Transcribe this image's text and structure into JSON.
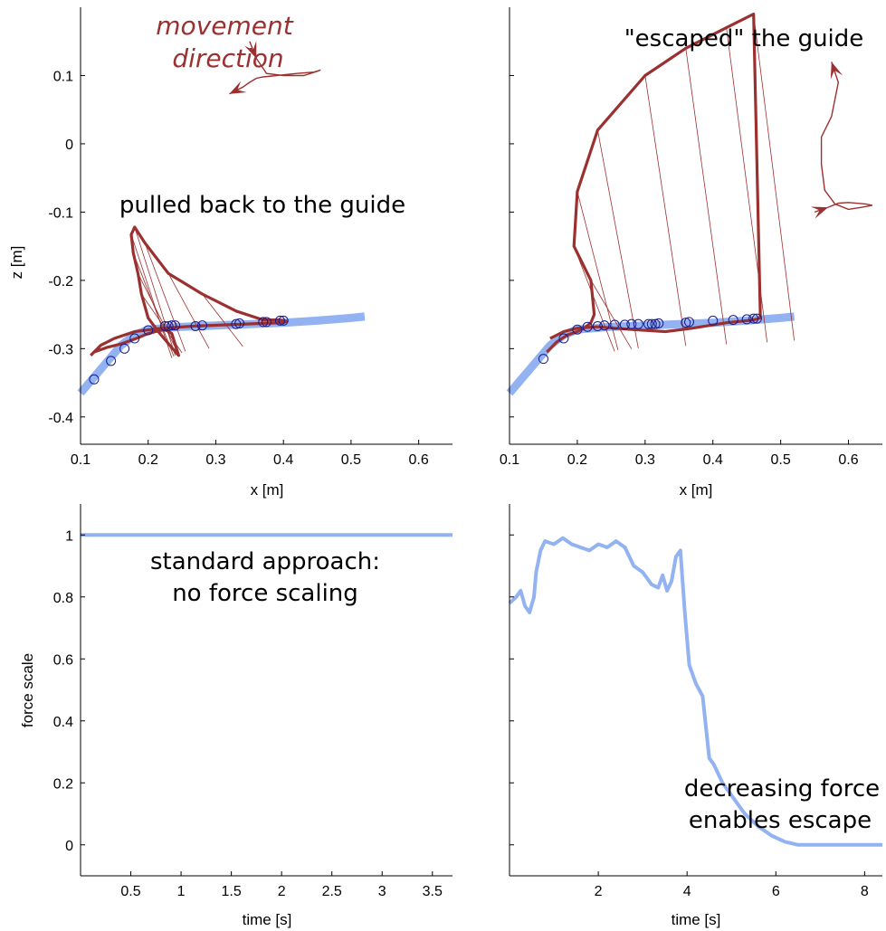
{
  "colors": {
    "trajectory": "#9b3030",
    "guide": "#93b2f2",
    "markers": "#1a1a8c",
    "axis": "#000000"
  },
  "chart_data": [
    {
      "type": "line",
      "panel": "top-left",
      "xlabel": "x [m]",
      "ylabel": "z [m]",
      "xlim": [
        0.1,
        0.65
      ],
      "ylim": [
        -0.44,
        0.2
      ],
      "xticks": [
        "0.1",
        "0.2",
        "0.3",
        "0.4",
        "0.5",
        "0.6"
      ],
      "yticks": [
        "0.1",
        "0",
        "-0.1",
        "-0.2",
        "-0.3",
        "-0.4"
      ],
      "annotations": [
        "movement direction",
        "pulled back to the guide"
      ],
      "series": [
        {
          "role": "guide",
          "x": [
            0.1,
            0.13,
            0.16,
            0.18,
            0.2,
            0.25,
            0.3,
            0.35,
            0.4,
            0.45,
            0.5,
            0.52
          ],
          "y": [
            -0.365,
            -0.33,
            -0.295,
            -0.28,
            -0.272,
            -0.268,
            -0.266,
            -0.264,
            -0.262,
            -0.259,
            -0.255,
            -0.253
          ]
        },
        {
          "role": "trajectory",
          "x": [
            0.115,
            0.12,
            0.14,
            0.16,
            0.18,
            0.2,
            0.215,
            0.225,
            0.235,
            0.245,
            0.232,
            0.215,
            0.2,
            0.19,
            0.185,
            0.178,
            0.175,
            0.18,
            0.195,
            0.23,
            0.28,
            0.33,
            0.37,
            0.395,
            0.405,
            0.4,
            0.37,
            0.32,
            0.27,
            0.22,
            0.18,
            0.15,
            0.13,
            0.115
          ],
          "y": [
            -0.31,
            -0.305,
            -0.298,
            -0.293,
            -0.286,
            -0.278,
            -0.274,
            -0.272,
            -0.278,
            -0.31,
            -0.295,
            -0.275,
            -0.255,
            -0.22,
            -0.19,
            -0.16,
            -0.133,
            -0.122,
            -0.145,
            -0.19,
            -0.22,
            -0.245,
            -0.258,
            -0.258,
            -0.26,
            -0.262,
            -0.263,
            -0.265,
            -0.267,
            -0.27,
            -0.275,
            -0.285,
            -0.295,
            -0.31
          ]
        },
        {
          "role": "markers",
          "x": [
            0.12,
            0.145,
            0.165,
            0.18,
            0.2,
            0.225,
            0.23,
            0.235,
            0.24,
            0.27,
            0.28,
            0.33,
            0.335,
            0.37,
            0.375,
            0.395,
            0.4
          ],
          "y": [
            -0.345,
            -0.318,
            -0.3,
            -0.285,
            -0.273,
            -0.267,
            -0.267,
            -0.266,
            -0.266,
            -0.267,
            -0.266,
            -0.264,
            -0.263,
            -0.261,
            -0.261,
            -0.259,
            -0.259
          ]
        },
        {
          "role": "direction-inset",
          "x": [
            0.35,
            0.36,
            0.375,
            0.4,
            0.43,
            0.45,
            0.455,
            0.445,
            0.42,
            0.39,
            0.37,
            0.36,
            0.35,
            0.34,
            0.32
          ],
          "y": [
            0.15,
            0.125,
            0.103,
            0.1,
            0.1,
            0.106,
            0.108,
            0.105,
            0.103,
            0.1,
            0.098,
            0.096,
            0.09,
            0.083,
            0.073
          ]
        }
      ]
    },
    {
      "type": "line",
      "panel": "top-right",
      "xlabel": "x [m]",
      "ylabel": "",
      "xlim": [
        0.1,
        0.65
      ],
      "ylim": [
        -0.44,
        0.2
      ],
      "xticks": [
        "0.1",
        "0.2",
        "0.3",
        "0.4",
        "0.5",
        "0.6"
      ],
      "annotations": [
        "\"escaped\" the guide"
      ],
      "series": [
        {
          "role": "guide",
          "x": [
            0.1,
            0.13,
            0.16,
            0.18,
            0.2,
            0.25,
            0.3,
            0.35,
            0.4,
            0.45,
            0.5,
            0.52
          ],
          "y": [
            -0.365,
            -0.33,
            -0.295,
            -0.28,
            -0.272,
            -0.268,
            -0.266,
            -0.264,
            -0.262,
            -0.259,
            -0.255,
            -0.253
          ]
        },
        {
          "role": "trajectory",
          "x": [
            0.155,
            0.17,
            0.185,
            0.2,
            0.21,
            0.22,
            0.225,
            0.22,
            0.195,
            0.2,
            0.23,
            0.3,
            0.36,
            0.42,
            0.46,
            0.47,
            0.46,
            0.42,
            0.37,
            0.33,
            0.28,
            0.23,
            0.2,
            0.18,
            0.16
          ],
          "y": [
            -0.305,
            -0.29,
            -0.28,
            -0.275,
            -0.27,
            -0.262,
            -0.25,
            -0.2,
            -0.15,
            -0.07,
            0.02,
            0.1,
            0.14,
            0.17,
            0.19,
            -0.255,
            -0.258,
            -0.262,
            -0.27,
            -0.275,
            -0.272,
            -0.268,
            -0.27,
            -0.275,
            -0.285
          ]
        },
        {
          "role": "markers",
          "x": [
            0.15,
            0.18,
            0.2,
            0.215,
            0.23,
            0.24,
            0.255,
            0.27,
            0.28,
            0.29,
            0.305,
            0.31,
            0.315,
            0.32,
            0.36,
            0.365,
            0.4,
            0.43,
            0.45,
            0.46,
            0.465
          ],
          "y": [
            -0.315,
            -0.285,
            -0.272,
            -0.268,
            -0.267,
            -0.266,
            -0.265,
            -0.265,
            -0.264,
            -0.264,
            -0.264,
            -0.264,
            -0.264,
            -0.263,
            -0.262,
            -0.261,
            -0.259,
            -0.258,
            -0.257,
            -0.256,
            -0.256
          ]
        },
        {
          "role": "direction-inset",
          "x": [
            0.55,
            0.57,
            0.585,
            0.6,
            0.625,
            0.635,
            0.62,
            0.6,
            0.58,
            0.565,
            0.56,
            0.56,
            0.575,
            0.585,
            0.575
          ],
          "y": [
            -0.1,
            -0.093,
            -0.087,
            -0.086,
            -0.088,
            -0.09,
            -0.093,
            -0.096,
            -0.088,
            -0.068,
            -0.03,
            0.01,
            0.04,
            0.09,
            0.12
          ]
        }
      ]
    },
    {
      "type": "line",
      "panel": "bottom-left",
      "xlabel": "time [s]",
      "ylabel": "force scale",
      "xlim": [
        0,
        3.7
      ],
      "ylim": [
        -0.1,
        1.1
      ],
      "xticks": [
        "0.5",
        "1",
        "1.5",
        "2",
        "2.5",
        "3",
        "3.5"
      ],
      "yticks": [
        "1",
        "0.8",
        "0.6",
        "0.4",
        "0.2",
        "0"
      ],
      "annotations": [
        "standard approach:",
        "no force scaling"
      ],
      "series": [
        {
          "x": [
            0,
            3.7
          ],
          "y": [
            1.0,
            1.0
          ]
        }
      ]
    },
    {
      "type": "line",
      "panel": "bottom-right",
      "xlabel": "time [s]",
      "ylabel": "",
      "xlim": [
        0,
        8.4
      ],
      "ylim": [
        -0.1,
        1.1
      ],
      "xticks": [
        "2",
        "4",
        "6",
        "8"
      ],
      "annotations": [
        "decreasing force",
        "enables escape"
      ],
      "series": [
        {
          "x": [
            0,
            0.15,
            0.25,
            0.35,
            0.45,
            0.55,
            0.6,
            0.7,
            0.8,
            1.0,
            1.2,
            1.4,
            1.6,
            1.8,
            2.0,
            2.2,
            2.4,
            2.6,
            2.8,
            3.0,
            3.2,
            3.35,
            3.45,
            3.55,
            3.65,
            3.75,
            3.85,
            3.95,
            4.05,
            4.2,
            4.35,
            4.5,
            4.6,
            4.8,
            5.0,
            5.3,
            5.6,
            5.9,
            6.2,
            6.5,
            7.0,
            8.4
          ],
          "y": [
            0.78,
            0.8,
            0.82,
            0.77,
            0.75,
            0.8,
            0.88,
            0.95,
            0.98,
            0.97,
            0.99,
            0.97,
            0.96,
            0.95,
            0.97,
            0.96,
            0.98,
            0.96,
            0.9,
            0.88,
            0.84,
            0.83,
            0.87,
            0.82,
            0.85,
            0.93,
            0.95,
            0.75,
            0.58,
            0.52,
            0.48,
            0.28,
            0.26,
            0.2,
            0.16,
            0.1,
            0.06,
            0.03,
            0.01,
            0.0,
            0.0,
            0.0
          ]
        }
      ]
    }
  ]
}
